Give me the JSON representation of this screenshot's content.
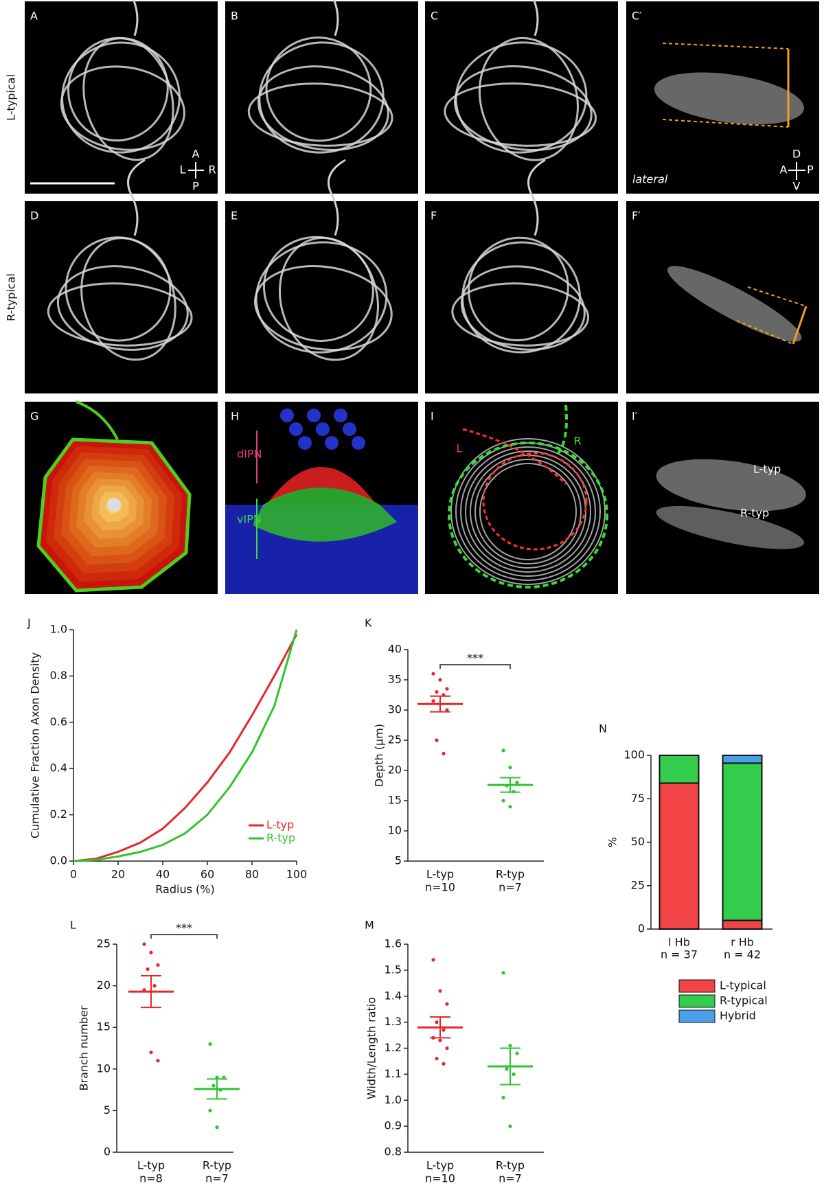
{
  "image_panels": [
    {
      "label": "A",
      "texts": [
        "A",
        "L",
        "R",
        "P"
      ]
    },
    {
      "label": "B"
    },
    {
      "label": "C"
    },
    {
      "label": "C′",
      "texts": [
        "lateral",
        "D",
        "A",
        "P",
        "V"
      ]
    },
    {
      "label": "D"
    },
    {
      "label": "E"
    },
    {
      "label": "F"
    },
    {
      "label": "F′"
    },
    {
      "label": "G"
    },
    {
      "label": "H",
      "texts": [
        "dIPN",
        "vIPN"
      ]
    },
    {
      "label": "I",
      "texts": [
        "L",
        "R"
      ]
    },
    {
      "label": "I′",
      "texts": [
        "L-typ",
        "R-typ"
      ]
    }
  ],
  "row_labels": [
    "L-typical",
    "R-typical"
  ],
  "chart_data": [
    {
      "type": "line",
      "panel_label": "J",
      "xlabel": "Radius (%)",
      "ylabel": "Cumulative Fraction Axon Density",
      "x": [
        0,
        10,
        20,
        30,
        40,
        50,
        60,
        70,
        80,
        90,
        100
      ],
      "xlim": [
        0,
        100
      ],
      "xticks": [
        0,
        20,
        40,
        60,
        80,
        100
      ],
      "ylim": [
        0,
        1
      ],
      "yticks": [
        {
          "value": 0,
          "label": "0.0"
        },
        0.2,
        0.4,
        0.6,
        0.8,
        {
          "value": 1,
          "label": "1.0"
        }
      ],
      "legend": "lower right",
      "series": [
        {
          "name": "L-typ",
          "color": "#e8262a",
          "values": [
            0,
            0.01,
            0.04,
            0.08,
            0.14,
            0.23,
            0.34,
            0.47,
            0.63,
            0.8,
            0.98
          ]
        },
        {
          "name": "R-typ",
          "color": "#2dc52d",
          "values": [
            0,
            0.005,
            0.02,
            0.04,
            0.07,
            0.12,
            0.2,
            0.32,
            0.47,
            0.67,
            1
          ]
        }
      ]
    },
    {
      "type": "dot",
      "panel_label": "K",
      "ylabel": "Depth (µm)",
      "ylim": [
        5,
        40
      ],
      "yticks": [
        5,
        10,
        15,
        20,
        25,
        30,
        35,
        40
      ],
      "significance": "***",
      "groups": [
        {
          "name": "L-typ",
          "n_label": "n=10",
          "color": "#e8262a",
          "points": [
            36,
            35,
            33.5,
            33,
            32.5,
            31.5,
            31,
            30,
            25,
            22.8
          ],
          "mean": 31,
          "sem": 1.3
        },
        {
          "name": "R-typ",
          "n_label": "n=7",
          "color": "#2dc52d",
          "points": [
            23.3,
            20.5,
            18,
            17.5,
            16.5,
            15,
            14
          ],
          "mean": 17.6,
          "sem": 1.2
        }
      ]
    },
    {
      "type": "dot",
      "panel_label": "L",
      "ylabel": "Branch number",
      "ylim": [
        0,
        25
      ],
      "yticks": [
        0,
        5,
        10,
        15,
        20,
        25
      ],
      "significance": "***",
      "groups": [
        {
          "name": "L-typ",
          "n_label": "n=8",
          "color": "#e8262a",
          "points": [
            25,
            24,
            22.5,
            22,
            20,
            19.5,
            12,
            11
          ],
          "mean": 19.3,
          "sem": 1.9
        },
        {
          "name": "R-typ",
          "n_label": "n=7",
          "color": "#2dc52d",
          "points": [
            13,
            9,
            9,
            8,
            7.5,
            5,
            3
          ],
          "mean": 7.6,
          "sem": 1.2
        }
      ]
    },
    {
      "type": "dot",
      "panel_label": "M",
      "ylabel": "Width/Length ratio",
      "ylim": [
        0.8,
        1.6
      ],
      "yticks": [
        0.8,
        0.9,
        {
          "value": 1,
          "label": "1.0"
        },
        1.1,
        1.2,
        1.3,
        1.4,
        1.5,
        1.6
      ],
      "groups": [
        {
          "name": "L-typ",
          "n_label": "n=10",
          "color": "#e8262a",
          "points": [
            1.54,
            1.42,
            1.37,
            1.3,
            1.27,
            1.24,
            1.23,
            1.2,
            1.16,
            1.14
          ],
          "mean": 1.28,
          "sem": 0.04
        },
        {
          "name": "R-typ",
          "n_label": "n=7",
          "color": "#2dc52d",
          "points": [
            1.49,
            1.21,
            1.18,
            1.12,
            1.1,
            1.01,
            0.9
          ],
          "mean": 1.13,
          "sem": 0.07
        }
      ]
    },
    {
      "type": "stacked_bar",
      "panel_label": "N",
      "ylabel": "%",
      "categories": [
        "l Hb",
        "r Hb"
      ],
      "n_labels": [
        "n = 37",
        "n = 42"
      ],
      "ylim": [
        0,
        100
      ],
      "yticks": [
        0,
        25,
        50,
        75,
        100
      ],
      "series": [
        {
          "name": "L-typical",
          "color": "#f24444",
          "values": [
            84,
            5
          ]
        },
        {
          "name": "R-typical",
          "color": "#33cc4c",
          "values": [
            16,
            90.5
          ]
        },
        {
          "name": "Hybrid",
          "color": "#4aa0e8",
          "values": [
            0,
            4.5
          ]
        }
      ]
    }
  ]
}
